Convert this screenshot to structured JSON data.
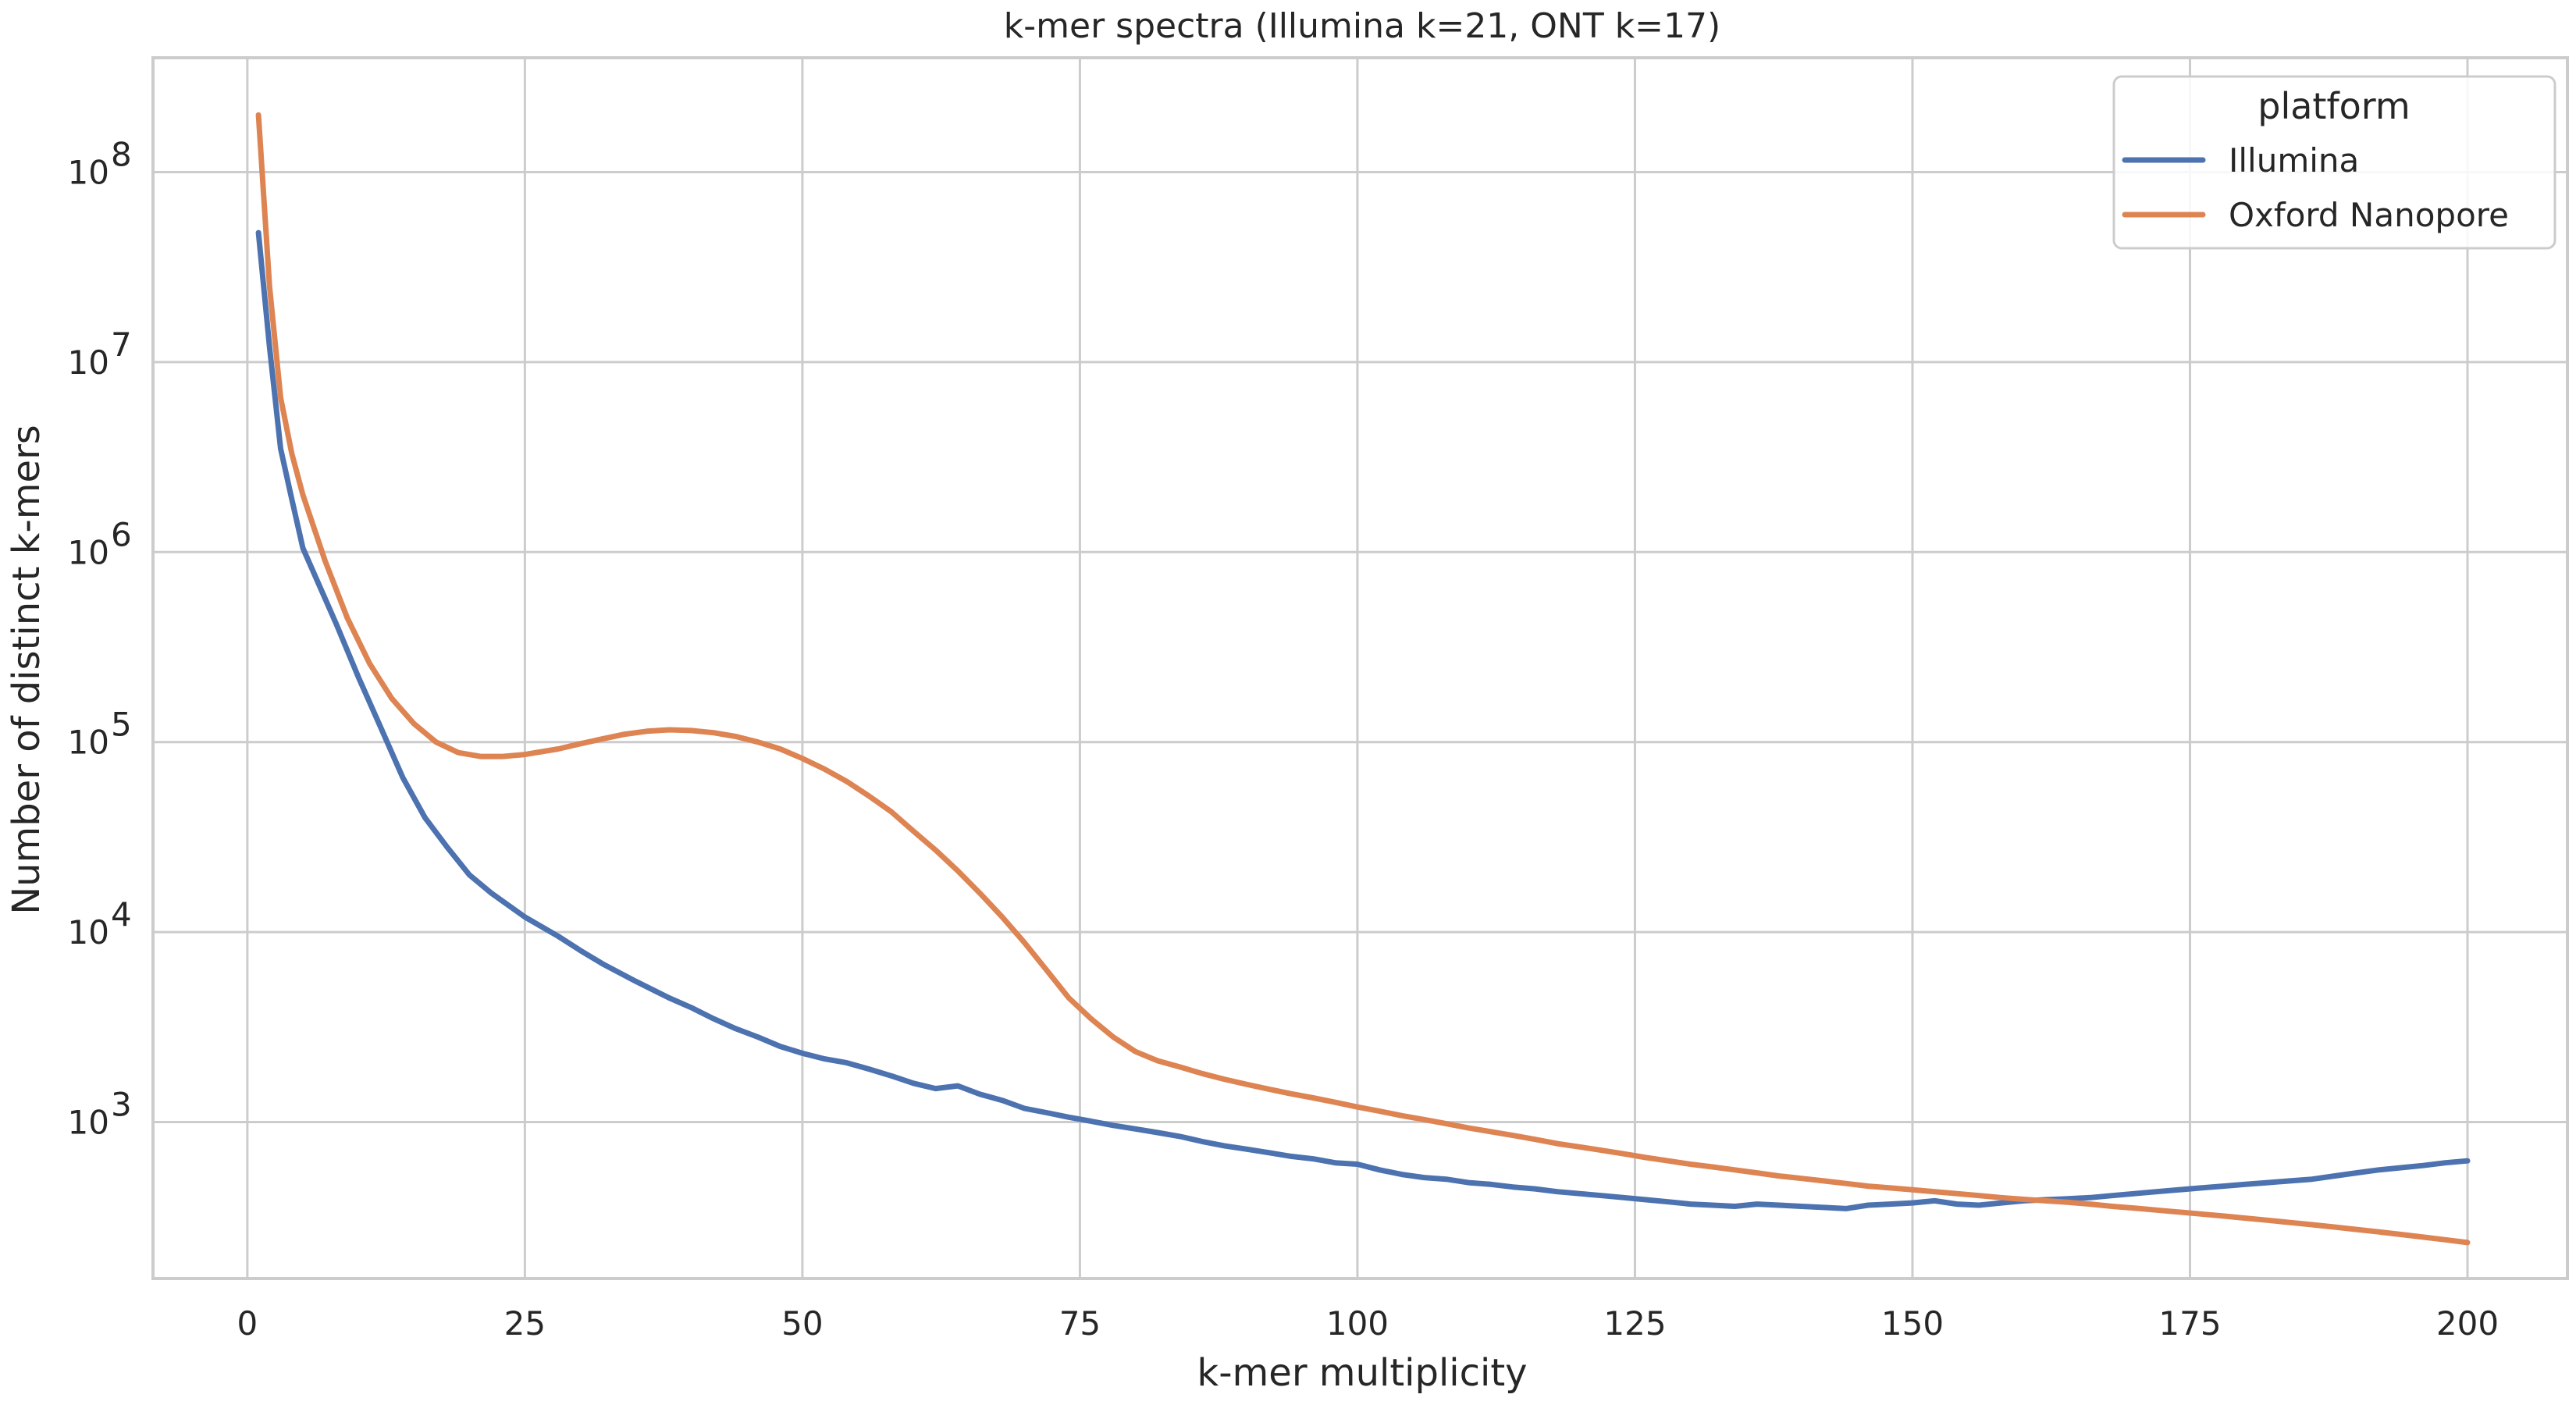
{
  "chart_data": {
    "type": "line",
    "title": "k-mer spectra (Illumina k=21, ONT k=17)",
    "xlabel": "k-mer multiplicity",
    "ylabel": "Number of distinct k-mers",
    "xlim": [
      -8.5,
      209
    ],
    "ylim": [
      150,
      400000000
    ],
    "yscale": "log",
    "grid": true,
    "legend": {
      "title": "platform",
      "placement": "top-right"
    },
    "x_ticks": [
      0,
      25,
      50,
      75,
      100,
      125,
      150,
      175,
      200
    ],
    "y_ticks": [
      {
        "value": 1000,
        "base": "10",
        "exp": "3"
      },
      {
        "value": 10000,
        "base": "10",
        "exp": "4"
      },
      {
        "value": 100000,
        "base": "10",
        "exp": "5"
      },
      {
        "value": 1000000,
        "base": "10",
        "exp": "6"
      },
      {
        "value": 10000000,
        "base": "10",
        "exp": "7"
      },
      {
        "value": 100000000,
        "base": "10",
        "exp": "8"
      }
    ],
    "series": [
      {
        "name": "Illumina",
        "color": "#4c72b0",
        "points": [
          [
            1,
            48000000
          ],
          [
            2,
            12000000
          ],
          [
            3,
            3500000
          ],
          [
            4,
            1900000
          ],
          [
            5,
            1050000
          ],
          [
            8,
            420000
          ],
          [
            10,
            220000
          ],
          [
            12,
            120000
          ],
          [
            14,
            65000
          ],
          [
            16,
            40000
          ],
          [
            18,
            28000
          ],
          [
            20,
            20000
          ],
          [
            22,
            16000
          ],
          [
            25,
            12000
          ],
          [
            28,
            9500
          ],
          [
            30,
            8000
          ],
          [
            32,
            6800
          ],
          [
            35,
            5500
          ],
          [
            38,
            4500
          ],
          [
            40,
            4000
          ],
          [
            42,
            3500
          ],
          [
            44,
            3100
          ],
          [
            46,
            2800
          ],
          [
            48,
            2500
          ],
          [
            50,
            2300
          ],
          [
            52,
            2150
          ],
          [
            54,
            2050
          ],
          [
            56,
            1900
          ],
          [
            58,
            1750
          ],
          [
            60,
            1600
          ],
          [
            62,
            1500
          ],
          [
            64,
            1550
          ],
          [
            66,
            1400
          ],
          [
            68,
            1300
          ],
          [
            70,
            1180
          ],
          [
            72,
            1120
          ],
          [
            74,
            1060
          ],
          [
            76,
            1010
          ],
          [
            78,
            960
          ],
          [
            80,
            920
          ],
          [
            82,
            880
          ],
          [
            84,
            840
          ],
          [
            86,
            790
          ],
          [
            88,
            750
          ],
          [
            90,
            720
          ],
          [
            92,
            690
          ],
          [
            94,
            660
          ],
          [
            96,
            640
          ],
          [
            98,
            610
          ],
          [
            100,
            600
          ],
          [
            102,
            560
          ],
          [
            104,
            530
          ],
          [
            106,
            510
          ],
          [
            108,
            500
          ],
          [
            110,
            480
          ],
          [
            112,
            470
          ],
          [
            114,
            455
          ],
          [
            116,
            445
          ],
          [
            118,
            430
          ],
          [
            120,
            420
          ],
          [
            122,
            410
          ],
          [
            124,
            400
          ],
          [
            126,
            390
          ],
          [
            128,
            380
          ],
          [
            130,
            370
          ],
          [
            132,
            365
          ],
          [
            134,
            360
          ],
          [
            136,
            370
          ],
          [
            138,
            365
          ],
          [
            140,
            360
          ],
          [
            142,
            355
          ],
          [
            144,
            350
          ],
          [
            146,
            365
          ],
          [
            148,
            370
          ],
          [
            150,
            375
          ],
          [
            152,
            385
          ],
          [
            154,
            370
          ],
          [
            156,
            365
          ],
          [
            158,
            375
          ],
          [
            160,
            385
          ],
          [
            162,
            390
          ],
          [
            164,
            395
          ],
          [
            166,
            400
          ],
          [
            168,
            410
          ],
          [
            170,
            420
          ],
          [
            172,
            430
          ],
          [
            174,
            440
          ],
          [
            176,
            450
          ],
          [
            178,
            460
          ],
          [
            180,
            470
          ],
          [
            182,
            480
          ],
          [
            184,
            490
          ],
          [
            186,
            500
          ],
          [
            188,
            520
          ],
          [
            190,
            540
          ],
          [
            192,
            560
          ],
          [
            194,
            575
          ],
          [
            196,
            590
          ],
          [
            198,
            610
          ],
          [
            200,
            625
          ]
        ]
      },
      {
        "name": "Oxford Nanopore",
        "color": "#dd8452",
        "points": [
          [
            1,
            200000000
          ],
          [
            2,
            25000000
          ],
          [
            3,
            6500000
          ],
          [
            4,
            3300000
          ],
          [
            5,
            2000000
          ],
          [
            7,
            900000
          ],
          [
            9,
            450000
          ],
          [
            11,
            260000
          ],
          [
            13,
            170000
          ],
          [
            15,
            125000
          ],
          [
            17,
            100000
          ],
          [
            19,
            88000
          ],
          [
            21,
            84000
          ],
          [
            23,
            84000
          ],
          [
            25,
            86000
          ],
          [
            28,
            92000
          ],
          [
            30,
            98000
          ],
          [
            32,
            104000
          ],
          [
            34,
            110000
          ],
          [
            36,
            114000
          ],
          [
            38,
            116000
          ],
          [
            40,
            115000
          ],
          [
            42,
            112000
          ],
          [
            44,
            107000
          ],
          [
            46,
            100000
          ],
          [
            48,
            92000
          ],
          [
            50,
            82000
          ],
          [
            52,
            72000
          ],
          [
            54,
            62000
          ],
          [
            56,
            52000
          ],
          [
            58,
            43000
          ],
          [
            60,
            34000
          ],
          [
            62,
            27000
          ],
          [
            64,
            21000
          ],
          [
            66,
            16000
          ],
          [
            68,
            12000
          ],
          [
            70,
            8800
          ],
          [
            72,
            6300
          ],
          [
            74,
            4500
          ],
          [
            76,
            3500
          ],
          [
            78,
            2800
          ],
          [
            80,
            2350
          ],
          [
            82,
            2100
          ],
          [
            84,
            1950
          ],
          [
            86,
            1800
          ],
          [
            88,
            1680
          ],
          [
            90,
            1580
          ],
          [
            92,
            1490
          ],
          [
            94,
            1410
          ],
          [
            96,
            1340
          ],
          [
            98,
            1270
          ],
          [
            100,
            1200
          ],
          [
            102,
            1140
          ],
          [
            104,
            1080
          ],
          [
            106,
            1030
          ],
          [
            108,
            980
          ],
          [
            110,
            930
          ],
          [
            112,
            890
          ],
          [
            114,
            850
          ],
          [
            116,
            810
          ],
          [
            118,
            770
          ],
          [
            120,
            740
          ],
          [
            122,
            710
          ],
          [
            124,
            680
          ],
          [
            126,
            650
          ],
          [
            128,
            625
          ],
          [
            130,
            600
          ],
          [
            132,
            580
          ],
          [
            134,
            560
          ],
          [
            136,
            540
          ],
          [
            138,
            520
          ],
          [
            140,
            505
          ],
          [
            142,
            490
          ],
          [
            144,
            475
          ],
          [
            146,
            460
          ],
          [
            148,
            450
          ],
          [
            150,
            440
          ],
          [
            152,
            430
          ],
          [
            154,
            420
          ],
          [
            156,
            410
          ],
          [
            158,
            400
          ],
          [
            160,
            392
          ],
          [
            162,
            385
          ],
          [
            164,
            378
          ],
          [
            166,
            370
          ],
          [
            168,
            360
          ],
          [
            170,
            352
          ],
          [
            172,
            344
          ],
          [
            174,
            336
          ],
          [
            176,
            328
          ],
          [
            178,
            320
          ],
          [
            180,
            312
          ],
          [
            182,
            304
          ],
          [
            184,
            296
          ],
          [
            186,
            288
          ],
          [
            188,
            280
          ],
          [
            190,
            272
          ],
          [
            192,
            264
          ],
          [
            194,
            256
          ],
          [
            196,
            248
          ],
          [
            198,
            240
          ],
          [
            200,
            232
          ]
        ]
      }
    ]
  }
}
